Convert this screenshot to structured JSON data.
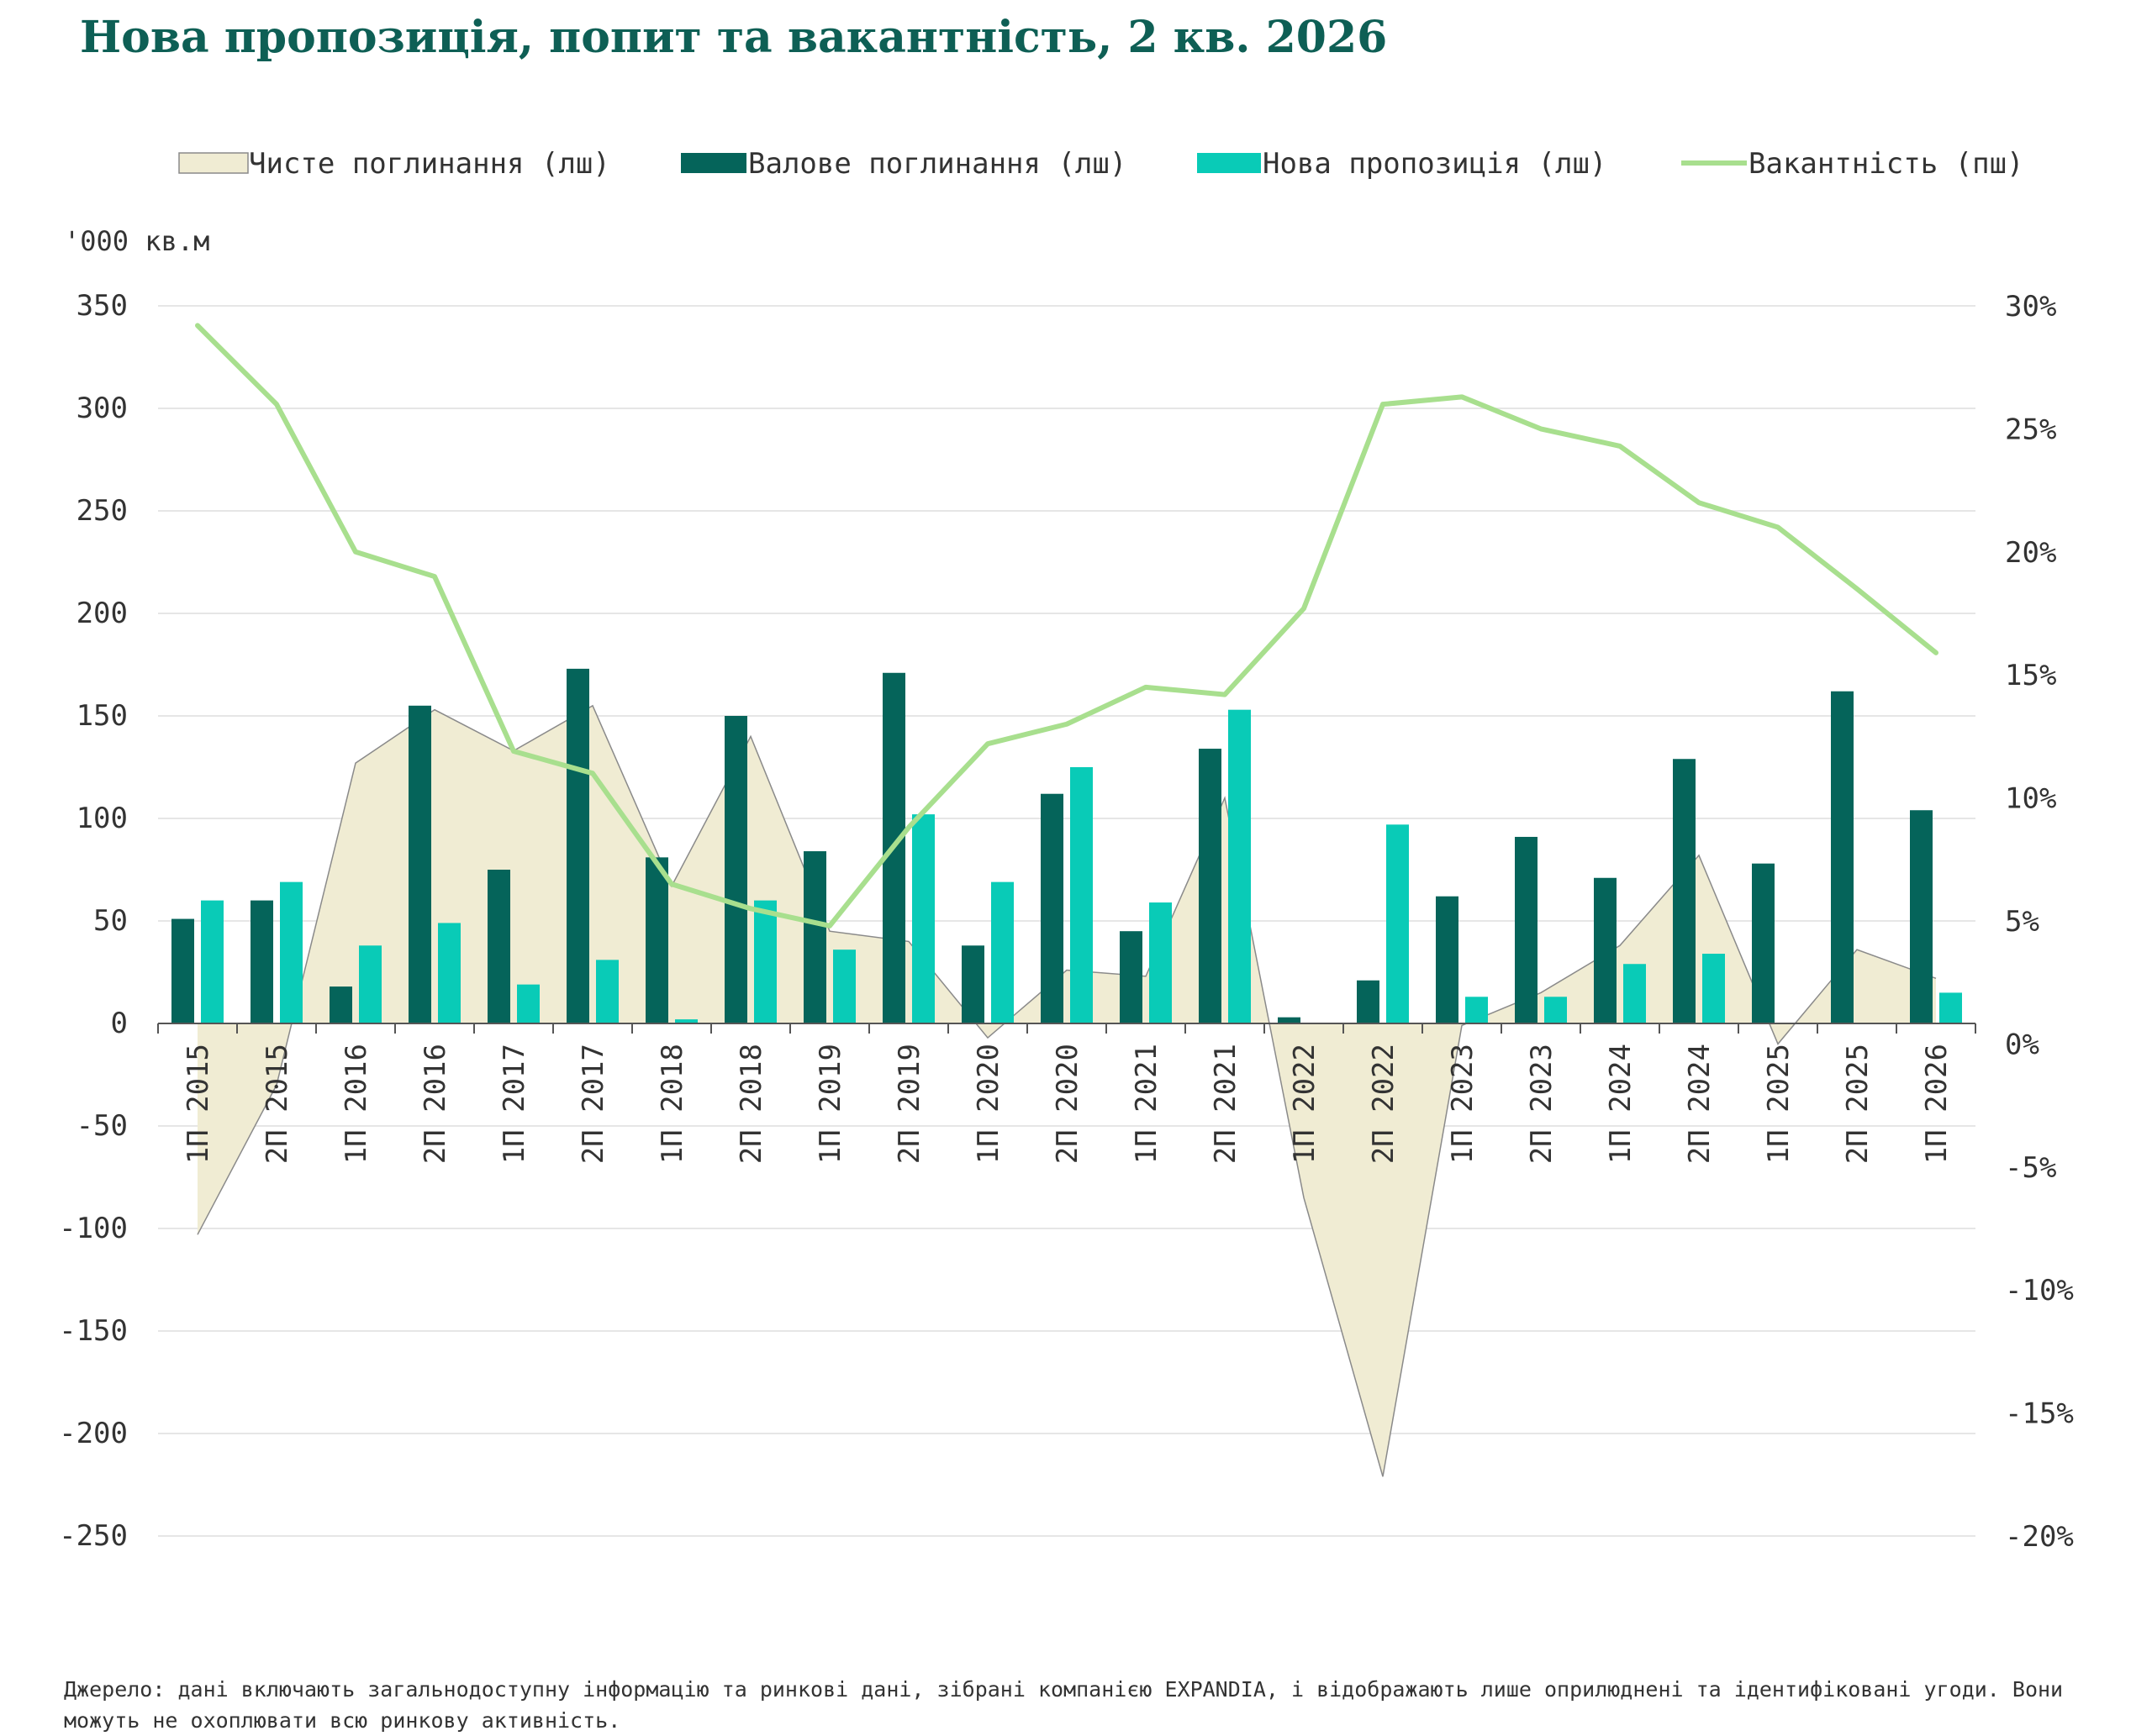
{
  "title": "Нова пропозиція, попит та вакантність, 2 кв. 2026",
  "footnote": "Джерело: дані включають загальнодоступну інформацію та ринкові дані, зібрані компанією EXPANDIA, і відображають лише оприлюднені та ідентифіковані угоди. Вони можуть не охоплювати всю ринкову активність.",
  "colors": {
    "net": "#f0ecd3",
    "net_stroke": "#8a8a8a",
    "gross": "#05645a",
    "supply": "#09cbb7",
    "vacancy": "#a8df8e",
    "title": "#0e5f55",
    "grid": "#e6e6e6",
    "text": "#333333"
  },
  "chart_data": {
    "type": "bar",
    "left_unit_label": "'000 кв.м",
    "categories": [
      "1П 2015",
      "2П 2015",
      "1П 2016",
      "2П 2016",
      "1П 2017",
      "2П 2017",
      "1П 2018",
      "2П 2018",
      "1П 2019",
      "2П 2019",
      "1П 2020",
      "2П 2020",
      "1П 2021",
      "2П 2021",
      "1П 2022",
      "2П 2022",
      "1П 2023",
      "2П 2023",
      "1П 2024",
      "2П 2024",
      "1П 2025",
      "2П 2025",
      "1П 2026"
    ],
    "left_axis": {
      "min": -250,
      "max": 350,
      "ticks": [
        350,
        300,
        250,
        200,
        150,
        100,
        50,
        0,
        -50,
        -100,
        -150,
        -200,
        -250
      ],
      "tick_labels": [
        "350",
        "300",
        "250",
        "200",
        "150",
        "100",
        "50",
        "0",
        "-50",
        "-100",
        "-150",
        "-200",
        "-250"
      ]
    },
    "right_axis": {
      "min": -20,
      "max": 30,
      "ticks": [
        30,
        25,
        20,
        15,
        10,
        5,
        0,
        -5,
        -10,
        -15,
        -20
      ],
      "tick_labels": [
        "30%",
        "25%",
        "20%",
        "15%",
        "10%",
        "5%",
        "0%",
        "-5%",
        "-10%",
        "-15%",
        "-20%"
      ]
    },
    "grid": true,
    "legend_position": "top",
    "series": [
      {
        "name": "Чисте поглинання (лш)",
        "kind": "area",
        "axis": "left",
        "values": [
          -103,
          -30,
          127,
          153,
          133,
          155,
          67,
          140,
          45,
          40,
          -7,
          26,
          23,
          110,
          -85,
          -221,
          -1,
          15,
          38,
          82,
          -10,
          36,
          22
        ]
      },
      {
        "name": "Валове поглинання (лш)",
        "kind": "bar",
        "axis": "left",
        "values": [
          51,
          60,
          18,
          155,
          75,
          173,
          81,
          150,
          84,
          171,
          38,
          112,
          45,
          134,
          3,
          21,
          62,
          91,
          71,
          129,
          78,
          162,
          104
        ]
      },
      {
        "name": "Нова пропозиція (лш)",
        "kind": "bar",
        "axis": "left",
        "values": [
          60,
          69,
          38,
          49,
          19,
          31,
          2,
          60,
          36,
          102,
          69,
          125,
          59,
          153,
          0,
          97,
          13,
          13,
          29,
          34,
          0,
          0,
          15
        ]
      },
      {
        "name": "Вакантність (пш)",
        "kind": "line",
        "axis": "right",
        "values": [
          29.2,
          26.0,
          20.0,
          19.0,
          11.9,
          11.0,
          6.5,
          5.5,
          4.8,
          8.8,
          12.2,
          13.0,
          14.5,
          14.2,
          17.7,
          26.0,
          26.3,
          25.0,
          24.3,
          22.0,
          21.0,
          18.5,
          15.9
        ]
      }
    ]
  }
}
